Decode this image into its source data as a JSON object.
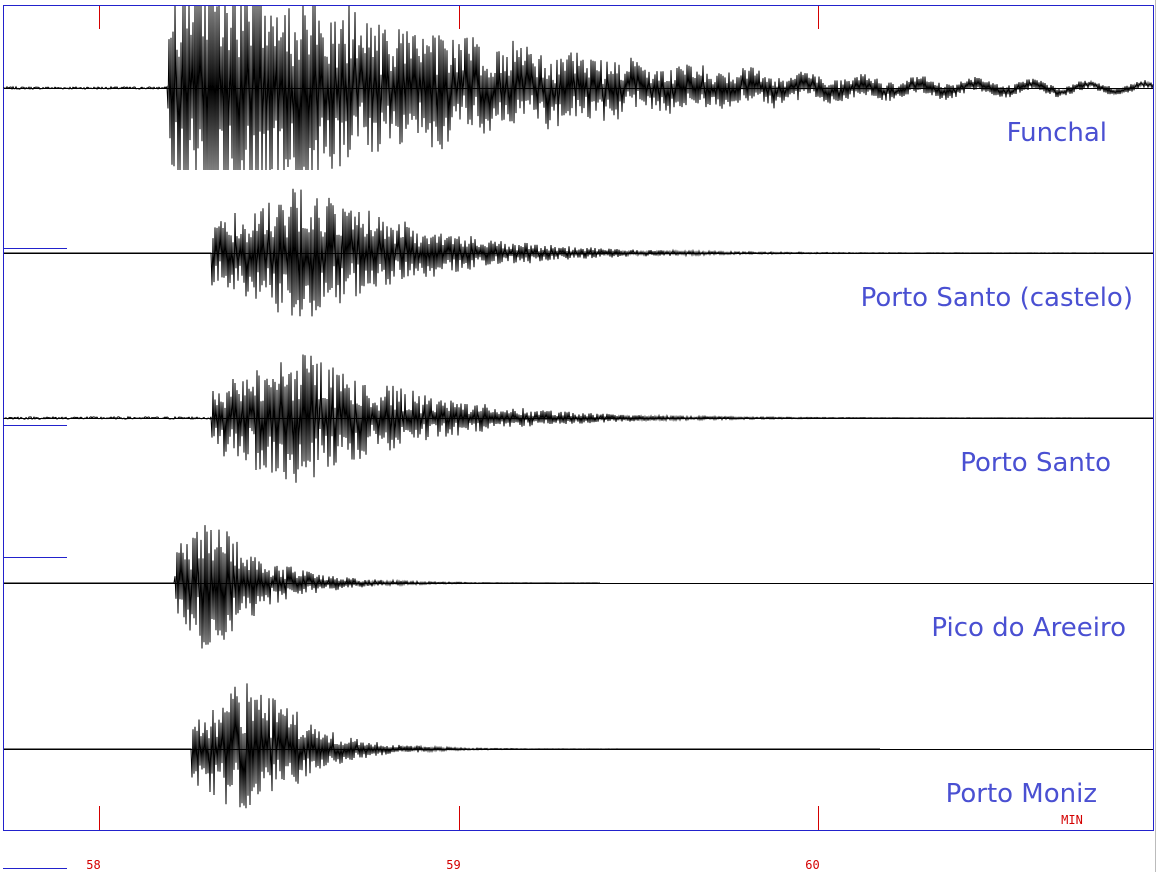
{
  "time_axis": {
    "ticks": [
      58,
      59,
      60
    ],
    "unit": "MIN"
  },
  "stations": [
    {
      "label": "Funchal"
    },
    {
      "label": "Porto Santo (castelo)"
    },
    {
      "label": "Porto Santo"
    },
    {
      "label": "Pico do Areeiro"
    },
    {
      "label": "Porto Moniz"
    }
  ]
}
